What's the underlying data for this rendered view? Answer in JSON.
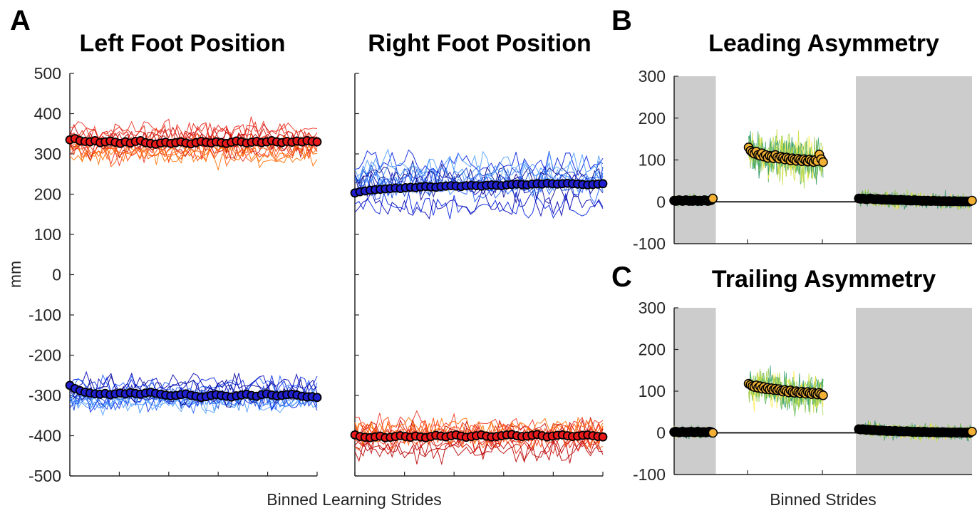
{
  "panels": {
    "a": {
      "label": "A",
      "ylabel": "mm",
      "xlabel": "Binned Learning Strides"
    },
    "b": {
      "label": "B"
    },
    "c": {
      "label": "C"
    },
    "bc_xlabel": "Binned Strides"
  },
  "colors": {
    "red_mean": "#e8181a",
    "blue_mean": "#1f1fd0",
    "orange_mean": "#f2b134",
    "red_traces": [
      "#c00000",
      "#e02010",
      "#ff4000",
      "#ff7000",
      "#f03020",
      "#b80000",
      "#ff5a10"
    ],
    "blue_traces": [
      "#0000b0",
      "#0020e0",
      "#2060ff",
      "#3a8cff",
      "#1040d0",
      "#0a0a90",
      "#4f9dff"
    ],
    "green_traces": [
      "#1a8a5a",
      "#4caf50",
      "#8bc34a",
      "#cddc39",
      "#ffeb3b",
      "#2e9d6e",
      "#a5d64c"
    ],
    "shade": "#cccccc"
  },
  "chart_data": [
    {
      "type": "line",
      "title": "Left Foot Position",
      "ylabel": "mm",
      "xlabel": "Binned Learning Strides",
      "ylim": [
        -500,
        500
      ],
      "yticks": [
        500,
        400,
        300,
        200,
        100,
        0,
        -100,
        -200,
        -300,
        -400,
        -500
      ],
      "x_range": [
        0,
        50
      ],
      "series": [
        {
          "group": "individual_upper",
          "color_set": "red_traces",
          "count": 14,
          "mean_level": 330,
          "spread": 40
        },
        {
          "group": "mean_upper",
          "color": "red_mean",
          "values": [
            335,
            338,
            333,
            331,
            330,
            333,
            328,
            330,
            332,
            329,
            326,
            330,
            327,
            331,
            333,
            328,
            326,
            324,
            327,
            329,
            326,
            328,
            330,
            327,
            325,
            328,
            331,
            329,
            327,
            330,
            328,
            326,
            329,
            332,
            330,
            327,
            329,
            331,
            328,
            330,
            333,
            330,
            328,
            331,
            329,
            332,
            330,
            333,
            331,
            330
          ]
        },
        {
          "group": "individual_lower",
          "color_set": "blue_traces",
          "count": 14,
          "mean_level": -300,
          "spread": 40
        },
        {
          "group": "mean_lower",
          "color": "blue_mean",
          "values": [
            -275,
            -283,
            -288,
            -292,
            -294,
            -296,
            -297,
            -295,
            -298,
            -296,
            -294,
            -296,
            -293,
            -295,
            -297,
            -294,
            -292,
            -295,
            -297,
            -299,
            -301,
            -300,
            -298,
            -296,
            -300,
            -302,
            -305,
            -303,
            -300,
            -298,
            -300,
            -302,
            -304,
            -301,
            -299,
            -297,
            -300,
            -302,
            -298,
            -296,
            -299,
            -301,
            -300,
            -298,
            -297,
            -299,
            -302,
            -304,
            -303,
            -305
          ]
        }
      ]
    },
    {
      "type": "line",
      "title": "Right Foot Position",
      "ylim": [
        -500,
        500
      ],
      "x_range": [
        0,
        50
      ],
      "series": [
        {
          "group": "individual_upper",
          "color_set": "blue_traces",
          "count": 14,
          "mean_level": 220,
          "spread": 50
        },
        {
          "group": "mean_upper",
          "color": "blue_mean",
          "values": [
            203,
            206,
            208,
            210,
            211,
            212,
            213,
            214,
            215,
            214,
            216,
            217,
            216,
            218,
            219,
            218,
            217,
            219,
            220,
            221,
            220,
            219,
            221,
            222,
            221,
            220,
            222,
            223,
            222,
            221,
            223,
            224,
            225,
            224,
            223,
            225,
            226,
            225,
            227,
            226,
            225,
            226,
            227,
            226,
            225,
            224,
            223,
            224,
            225,
            226
          ]
        },
        {
          "group": "individual_lower",
          "color_set": "red_traces",
          "count": 14,
          "mean_level": -400,
          "spread": 45
        },
        {
          "group": "mean_lower",
          "color": "red_mean",
          "values": [
            -398,
            -402,
            -404,
            -405,
            -403,
            -401,
            -405,
            -404,
            -402,
            -400,
            -402,
            -404,
            -401,
            -403,
            -405,
            -402,
            -399,
            -401,
            -403,
            -400,
            -398,
            -401,
            -404,
            -402,
            -400,
            -398,
            -401,
            -403,
            -402,
            -400,
            -398,
            -397,
            -400,
            -402,
            -401,
            -399,
            -397,
            -400,
            -403,
            -401,
            -399,
            -398,
            -400,
            -402,
            -401,
            -399,
            -398,
            -400,
            -402,
            -403
          ]
        }
      ]
    },
    {
      "type": "scatter",
      "title": "Leading Asymmetry",
      "ylim": [
        -100,
        300
      ],
      "yticks": [
        300,
        200,
        100,
        0,
        -100
      ],
      "x_range": [
        0,
        100
      ],
      "shaded_x_ranges": [
        [
          0,
          14
        ],
        [
          61,
          100
        ]
      ],
      "zero_line": true,
      "series": [
        {
          "segment": "baseline",
          "x_start": 0,
          "x_end": 13,
          "count": 24,
          "mean_values": [
            3,
            2,
            3,
            4,
            3,
            2,
            3,
            4,
            3,
            2,
            3,
            2,
            4,
            3,
            2,
            3,
            2,
            3,
            4,
            3,
            2,
            3,
            4,
            8
          ],
          "spread": 18
        },
        {
          "segment": "adaptation",
          "x_start": 25,
          "x_end": 50,
          "count": 40,
          "mean_values": [
            130,
            122,
            118,
            115,
            120,
            112,
            110,
            116,
            108,
            112,
            105,
            110,
            108,
            104,
            112,
            106,
            103,
            108,
            105,
            101,
            106,
            103,
            99,
            104,
            101,
            98,
            103,
            100,
            97,
            102,
            99,
            96,
            101,
            98,
            95,
            100,
            97,
            113,
            102,
            95
          ],
          "spread": 70
        },
        {
          "segment": "post",
          "x_start": 62,
          "x_end": 100,
          "count": 60,
          "mean_values": [
            8,
            7,
            8,
            7,
            6,
            7,
            8,
            7,
            6,
            6,
            7,
            6,
            5,
            6,
            5,
            5,
            6,
            5,
            4,
            5,
            4,
            4,
            5,
            4,
            4,
            3,
            4,
            3,
            3,
            4,
            3,
            3,
            3,
            2,
            3,
            2,
            3,
            2,
            2,
            3,
            2,
            2,
            2,
            1,
            2,
            2,
            1,
            2,
            1,
            1,
            2,
            1,
            1,
            1,
            1,
            1,
            1,
            1,
            1,
            3
          ],
          "spread": 25
        }
      ]
    },
    {
      "type": "scatter",
      "title": "Trailing Asymmetry",
      "xlabel": "Binned Strides",
      "ylim": [
        -100,
        300
      ],
      "yticks": [
        300,
        200,
        100,
        0,
        -100
      ],
      "x_range": [
        0,
        100
      ],
      "shaded_x_ranges": [
        [
          0,
          14
        ],
        [
          61,
          100
        ]
      ],
      "zero_line": true,
      "series": [
        {
          "segment": "baseline",
          "x_start": 0,
          "x_end": 13,
          "count": 24,
          "mean_values": [
            2,
            3,
            2,
            1,
            2,
            3,
            2,
            1,
            2,
            2,
            3,
            2,
            1,
            2,
            3,
            2,
            1,
            2,
            2,
            1,
            2,
            3,
            2,
            0
          ],
          "spread": 18
        },
        {
          "segment": "adaptation",
          "x_start": 25,
          "x_end": 50,
          "count": 40,
          "mean_values": [
            118,
            115,
            112,
            110,
            114,
            108,
            112,
            106,
            110,
            105,
            108,
            104,
            107,
            103,
            106,
            102,
            105,
            101,
            99,
            103,
            100,
            97,
            102,
            98,
            96,
            100,
            97,
            95,
            99,
            96,
            94,
            98,
            95,
            93,
            97,
            94,
            92,
            96,
            93,
            90
          ],
          "spread": 60
        },
        {
          "segment": "post",
          "x_start": 62,
          "x_end": 100,
          "count": 60,
          "mean_values": [
            9,
            8,
            9,
            8,
            7,
            8,
            7,
            6,
            7,
            6,
            6,
            5,
            6,
            5,
            5,
            4,
            5,
            4,
            4,
            5,
            4,
            3,
            4,
            3,
            3,
            4,
            3,
            3,
            2,
            3,
            2,
            3,
            2,
            2,
            3,
            2,
            2,
            1,
            2,
            2,
            1,
            2,
            1,
            1,
            2,
            1,
            1,
            1,
            0,
            1,
            1,
            0,
            1,
            1,
            0,
            1,
            0,
            1,
            0,
            3
          ],
          "spread": 25
        }
      ]
    }
  ]
}
